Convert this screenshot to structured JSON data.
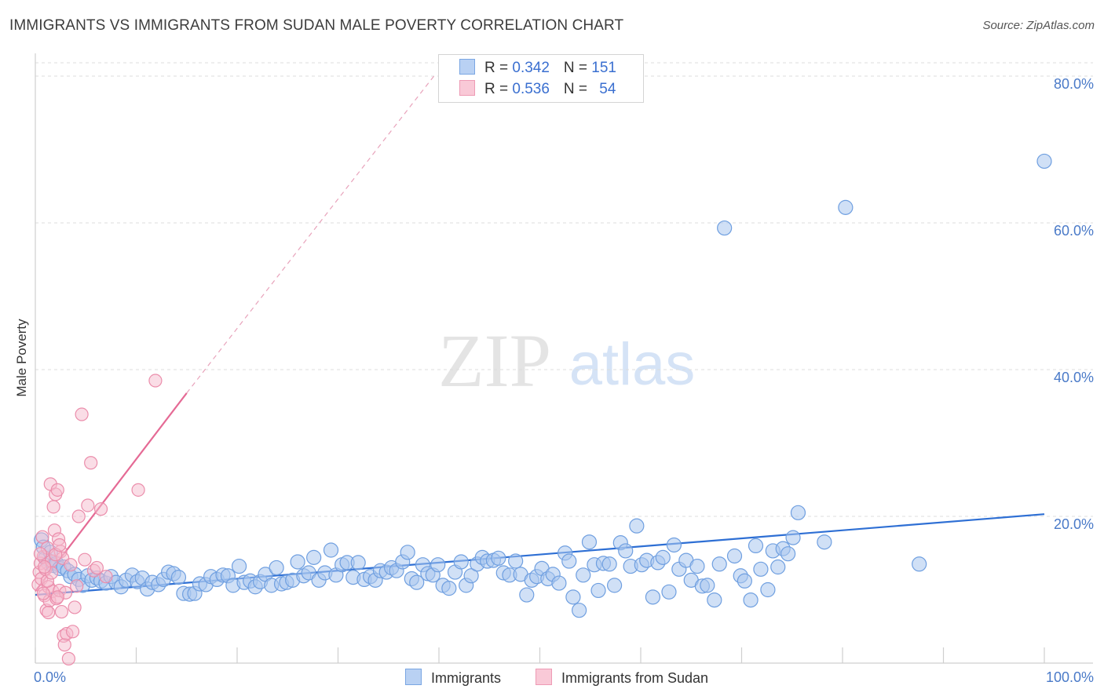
{
  "title": "IMMIGRANTS VS IMMIGRANTS FROM SUDAN MALE POVERTY CORRELATION CHART",
  "source": "Source: ZipAtlas.com",
  "watermark": {
    "zip": "ZIP",
    "atlas": "atlas"
  },
  "colors": {
    "blue_fill": "#a9c6ef",
    "blue_stroke": "#6f9fe0",
    "blue_line": "#2e6fd4",
    "pink_fill": "#f6bccd",
    "pink_stroke": "#eb8dab",
    "pink_line": "#e56a95",
    "grid": "#dcdcdc",
    "tick_text": "#4a7ac8"
  },
  "legend": {
    "rows": [
      {
        "r_label": "R = ",
        "r_value": "0.342",
        "n_label": "N = ",
        "n_value": "151"
      },
      {
        "r_label": "R = ",
        "r_value": "0.536",
        "n_label": "N = ",
        "n_value": "54"
      }
    ]
  },
  "bottom_legend": [
    "Immigrants",
    "Immigrants from Sudan"
  ],
  "chart_data": {
    "type": "scatter",
    "xlabel": "",
    "ylabel": "Male Poverty",
    "xlim": [
      0,
      100
    ],
    "ylim": [
      0,
      80
    ],
    "x_tick_labels": [
      "0.0%",
      "100.0%"
    ],
    "y_ticks": [
      20,
      40,
      60,
      80
    ],
    "y_tick_labels": [
      "20.0%",
      "40.0%",
      "60.0%",
      "80.0%"
    ],
    "grid": "horizontal dashed",
    "legend_placement": "top-center",
    "series": [
      {
        "name": "Immigrants",
        "R": 0.342,
        "N": 151,
        "trend": {
          "x": [
            0,
            100
          ],
          "y": [
            9.3,
            20.3
          ]
        },
        "points": [
          [
            0.6,
            16.8
          ],
          [
            0.8,
            15.8
          ],
          [
            1.0,
            14.3
          ],
          [
            1.3,
            13.6
          ],
          [
            1.5,
            15.1
          ],
          [
            1.8,
            13.3
          ],
          [
            2.1,
            13.6
          ],
          [
            2.4,
            12.9
          ],
          [
            2.8,
            13.1
          ],
          [
            3.2,
            12.6
          ],
          [
            3.5,
            11.8
          ],
          [
            3.9,
            12.1
          ],
          [
            4.3,
            11.4
          ],
          [
            4.7,
            10.6
          ],
          [
            5.2,
            11.9
          ],
          [
            5.6,
            11.3
          ],
          [
            6.1,
            11.6
          ],
          [
            6.5,
            11.2
          ],
          [
            7.0,
            10.9
          ],
          [
            7.5,
            11.8
          ],
          [
            8.0,
            11.0
          ],
          [
            8.5,
            10.4
          ],
          [
            9.0,
            11.3
          ],
          [
            9.6,
            12.0
          ],
          [
            10.1,
            11.1
          ],
          [
            10.6,
            11.6
          ],
          [
            11.1,
            10.1
          ],
          [
            11.6,
            11.0
          ],
          [
            12.2,
            10.7
          ],
          [
            12.7,
            11.4
          ],
          [
            13.2,
            12.4
          ],
          [
            13.7,
            12.2
          ],
          [
            14.2,
            11.7
          ],
          [
            14.7,
            9.5
          ],
          [
            15.3,
            9.4
          ],
          [
            15.8,
            9.5
          ],
          [
            16.3,
            10.8
          ],
          [
            16.9,
            10.7
          ],
          [
            17.4,
            11.8
          ],
          [
            18.0,
            11.4
          ],
          [
            18.6,
            12.0
          ],
          [
            19.1,
            11.9
          ],
          [
            19.6,
            10.6
          ],
          [
            20.2,
            13.2
          ],
          [
            20.7,
            11.0
          ],
          [
            21.3,
            11.2
          ],
          [
            21.8,
            10.4
          ],
          [
            22.3,
            11.1
          ],
          [
            22.8,
            12.1
          ],
          [
            23.4,
            10.6
          ],
          [
            23.9,
            13.0
          ],
          [
            24.4,
            10.8
          ],
          [
            24.9,
            11.0
          ],
          [
            25.5,
            11.3
          ],
          [
            26.0,
            13.8
          ],
          [
            26.6,
            11.9
          ],
          [
            27.1,
            12.3
          ],
          [
            27.6,
            14.4
          ],
          [
            28.1,
            11.3
          ],
          [
            28.7,
            12.3
          ],
          [
            29.3,
            15.4
          ],
          [
            29.8,
            12.0
          ],
          [
            30.4,
            13.4
          ],
          [
            30.9,
            13.7
          ],
          [
            31.5,
            11.7
          ],
          [
            32.0,
            13.7
          ],
          [
            32.6,
            11.4
          ],
          [
            33.2,
            11.8
          ],
          [
            33.7,
            11.3
          ],
          [
            34.2,
            12.6
          ],
          [
            34.8,
            12.4
          ],
          [
            35.3,
            13.0
          ],
          [
            35.8,
            12.6
          ],
          [
            36.4,
            13.8
          ],
          [
            36.9,
            15.1
          ],
          [
            37.3,
            11.5
          ],
          [
            37.8,
            11.0
          ],
          [
            38.4,
            13.4
          ],
          [
            38.9,
            12.2
          ],
          [
            39.4,
            12.0
          ],
          [
            39.9,
            13.4
          ],
          [
            40.4,
            10.6
          ],
          [
            41.0,
            10.2
          ],
          [
            41.6,
            12.4
          ],
          [
            42.2,
            13.8
          ],
          [
            42.7,
            10.6
          ],
          [
            43.2,
            11.9
          ],
          [
            43.8,
            13.5
          ],
          [
            44.3,
            14.4
          ],
          [
            44.8,
            13.9
          ],
          [
            45.4,
            14.0
          ],
          [
            45.9,
            14.3
          ],
          [
            46.4,
            12.3
          ],
          [
            47.0,
            12.0
          ],
          [
            47.6,
            13.9
          ],
          [
            48.1,
            12.1
          ],
          [
            48.7,
            9.3
          ],
          [
            49.2,
            11.3
          ],
          [
            49.7,
            11.8
          ],
          [
            50.2,
            12.9
          ],
          [
            50.8,
            11.5
          ],
          [
            51.3,
            12.1
          ],
          [
            51.9,
            10.9
          ],
          [
            52.5,
            15.0
          ],
          [
            52.9,
            13.9
          ],
          [
            53.3,
            9.0
          ],
          [
            53.9,
            7.2
          ],
          [
            54.3,
            12.0
          ],
          [
            54.9,
            16.5
          ],
          [
            55.4,
            13.4
          ],
          [
            55.8,
            9.9
          ],
          [
            56.3,
            13.6
          ],
          [
            56.9,
            13.5
          ],
          [
            57.4,
            10.6
          ],
          [
            58.0,
            16.4
          ],
          [
            58.5,
            15.3
          ],
          [
            59.0,
            13.2
          ],
          [
            59.6,
            18.7
          ],
          [
            60.1,
            13.4
          ],
          [
            60.6,
            14.0
          ],
          [
            61.2,
            9.0
          ],
          [
            61.7,
            13.7
          ],
          [
            62.2,
            14.4
          ],
          [
            62.8,
            9.7
          ],
          [
            63.3,
            16.1
          ],
          [
            63.8,
            12.8
          ],
          [
            64.5,
            14.0
          ],
          [
            65.0,
            11.3
          ],
          [
            65.6,
            13.2
          ],
          [
            66.1,
            10.5
          ],
          [
            66.6,
            10.6
          ],
          [
            67.3,
            8.6
          ],
          [
            67.8,
            13.5
          ],
          [
            68.3,
            59.3
          ],
          [
            69.3,
            14.6
          ],
          [
            69.9,
            11.9
          ],
          [
            70.3,
            11.2
          ],
          [
            70.9,
            8.6
          ],
          [
            71.4,
            16.0
          ],
          [
            71.9,
            12.8
          ],
          [
            72.6,
            10.0
          ],
          [
            73.1,
            15.3
          ],
          [
            73.6,
            13.1
          ],
          [
            74.1,
            15.6
          ],
          [
            74.6,
            14.9
          ],
          [
            75.1,
            17.1
          ],
          [
            75.6,
            20.5
          ],
          [
            78.2,
            16.5
          ],
          [
            80.3,
            62.1
          ],
          [
            87.6,
            13.5
          ],
          [
            100.0,
            68.4
          ]
        ]
      },
      {
        "name": "Immigrants from Sudan",
        "R": 0.536,
        "N": 54,
        "trend": {
          "x": [
            0,
            15
          ],
          "y": [
            9.8,
            36.8
          ]
        },
        "trend_dashed": {
          "x": [
            15,
            39.5
          ],
          "y": [
            36.8,
            80.0
          ]
        },
        "points": [
          [
            0.3,
            10.7
          ],
          [
            0.4,
            12.4
          ],
          [
            0.5,
            13.6
          ],
          [
            0.6,
            11.5
          ],
          [
            0.7,
            17.2
          ],
          [
            0.8,
            14.5
          ],
          [
            0.9,
            9.2
          ],
          [
            1.0,
            12.8
          ],
          [
            1.1,
            7.2
          ],
          [
            1.2,
            15.7
          ],
          [
            1.3,
            10.4
          ],
          [
            1.4,
            8.5
          ],
          [
            1.5,
            24.4
          ],
          [
            1.6,
            13.9
          ],
          [
            1.7,
            9.8
          ],
          [
            1.8,
            21.3
          ],
          [
            1.9,
            18.1
          ],
          [
            2.0,
            23.0
          ],
          [
            2.1,
            8.8
          ],
          [
            2.2,
            23.6
          ],
          [
            2.3,
            16.9
          ],
          [
            2.4,
            9.9
          ],
          [
            2.5,
            15.2
          ],
          [
            2.6,
            7.0
          ],
          [
            2.7,
            14.3
          ],
          [
            2.8,
            3.7
          ],
          [
            2.9,
            2.5
          ],
          [
            3.0,
            9.6
          ],
          [
            3.1,
            4.0
          ],
          [
            3.3,
            0.6
          ],
          [
            3.5,
            13.4
          ],
          [
            3.7,
            4.3
          ],
          [
            3.9,
            7.6
          ],
          [
            4.1,
            10.5
          ],
          [
            4.3,
            20.0
          ],
          [
            4.6,
            33.9
          ],
          [
            4.9,
            14.1
          ],
          [
            5.2,
            21.5
          ],
          [
            5.5,
            27.3
          ],
          [
            5.8,
            12.6
          ],
          [
            6.1,
            13.0
          ],
          [
            6.5,
            21.0
          ],
          [
            7.0,
            11.8
          ],
          [
            10.2,
            23.6
          ],
          [
            11.9,
            38.5
          ],
          [
            0.8,
            9.5
          ],
          [
            1.2,
            11.2
          ],
          [
            1.6,
            12.3
          ],
          [
            2.0,
            14.8
          ],
          [
            2.4,
            16.1
          ],
          [
            0.5,
            14.9
          ],
          [
            0.9,
            13.1
          ],
          [
            1.3,
            6.9
          ],
          [
            2.2,
            9.0
          ]
        ]
      }
    ]
  }
}
